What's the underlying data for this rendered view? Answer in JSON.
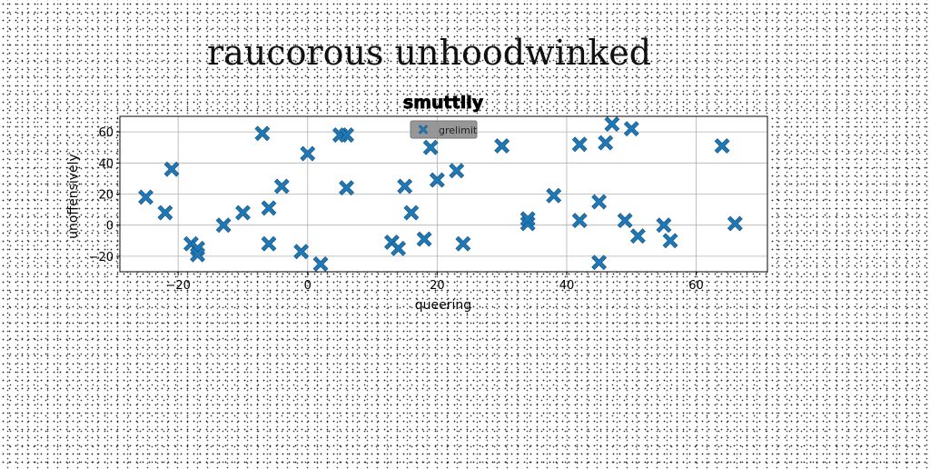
{
  "page": {
    "title": "raucorous unhoodwinked"
  },
  "chart_data": {
    "type": "scatter",
    "title": "smuttily",
    "xlabel": "queering",
    "ylabel": "unoffensively",
    "xlim": [
      -29,
      71
    ],
    "ylim": [
      -30,
      70
    ],
    "xticks": [
      -20,
      0,
      20,
      40,
      60
    ],
    "yticks": [
      -20,
      0,
      20,
      40,
      60
    ],
    "xtick_labels": [
      "−20",
      "0",
      "20",
      "40",
      "60"
    ],
    "ytick_labels": [
      "−20",
      "0",
      "20",
      "40",
      "60"
    ],
    "grid": true,
    "legend_position": "top-center",
    "marker": "X",
    "colors": {
      "series": "#1f77b4",
      "legend_bg": "#8c8c8c",
      "grid": "#b0b0b0"
    },
    "series": [
      {
        "name": "grelimit",
        "points": [
          [
            -25,
            18
          ],
          [
            -22,
            8
          ],
          [
            -21,
            36
          ],
          [
            -18,
            -12
          ],
          [
            -17,
            -15
          ],
          [
            -17,
            -19
          ],
          [
            -13,
            0
          ],
          [
            -10,
            8
          ],
          [
            -7,
            59
          ],
          [
            -6,
            11
          ],
          [
            -6,
            -12
          ],
          [
            -4,
            25
          ],
          [
            -1,
            -17
          ],
          [
            0,
            46
          ],
          [
            2,
            -25
          ],
          [
            5,
            58
          ],
          [
            6,
            58
          ],
          [
            6,
            24
          ],
          [
            13,
            -11
          ],
          [
            14,
            -15
          ],
          [
            15,
            25
          ],
          [
            16,
            8
          ],
          [
            18,
            -9
          ],
          [
            19,
            50
          ],
          [
            20,
            29
          ],
          [
            23,
            35
          ],
          [
            24,
            -12
          ],
          [
            30,
            51
          ],
          [
            34,
            1
          ],
          [
            34,
            4
          ],
          [
            38,
            19
          ],
          [
            42,
            52
          ],
          [
            42,
            3
          ],
          [
            45,
            15
          ],
          [
            45,
            -24
          ],
          [
            46,
            53
          ],
          [
            47,
            65
          ],
          [
            49,
            3
          ],
          [
            50,
            62
          ],
          [
            51,
            -7
          ],
          [
            55,
            0
          ],
          [
            56,
            -10
          ],
          [
            64,
            51
          ],
          [
            66,
            1
          ]
        ]
      }
    ]
  }
}
